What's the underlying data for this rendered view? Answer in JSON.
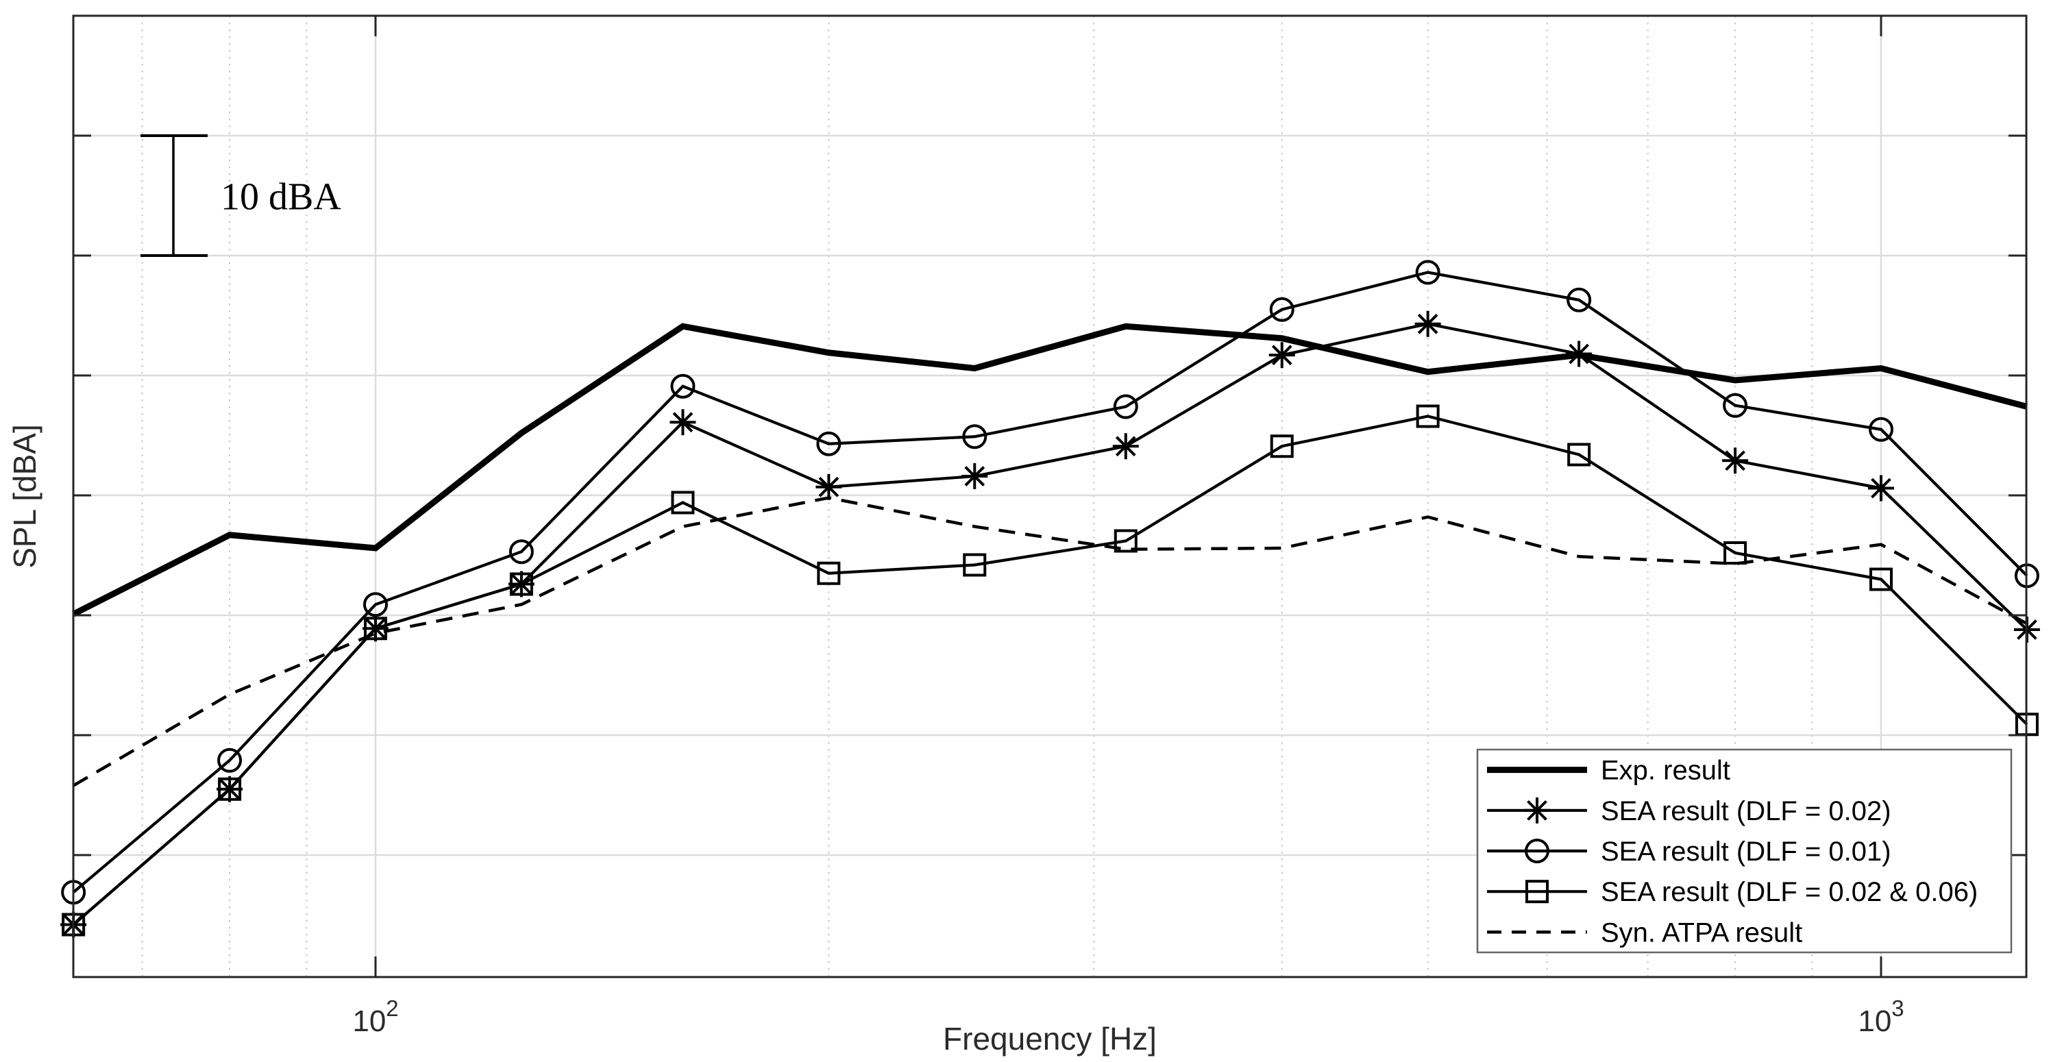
{
  "chart_data": {
    "type": "line",
    "title": "",
    "xlabel": "Frequency [Hz]",
    "ylabel": "SPL [dBA]",
    "x_scale": "log10",
    "x_range_hz": [
      63,
      1250
    ],
    "x_ticks": [
      {
        "value": 100,
        "label_base": "10",
        "label_exp": "2"
      },
      {
        "value": 1000,
        "label_base": "10",
        "label_exp": "3"
      }
    ],
    "x_gridlines_major_hz": [
      100,
      1000
    ],
    "x_gridlines_minor_hz": [
      70,
      80,
      90,
      200,
      300,
      400,
      500,
      600,
      700,
      800,
      900
    ],
    "y_axis": {
      "tick_labels_hidden": true,
      "gridline_interval_dba": 10,
      "relative_range_dba": [
        0,
        80
      ],
      "gridline_values": [
        10,
        20,
        30,
        40,
        50,
        60,
        70
      ]
    },
    "annotation": {
      "text": "10 dBA",
      "meaning": "vertical scale bar spanning one horizontal gridline interval (10 dBA)"
    },
    "grid": "on",
    "legend_position": "bottom-right",
    "frequencies_hz": [
      63,
      80,
      100,
      125,
      160,
      200,
      250,
      315,
      400,
      500,
      630,
      800,
      1000,
      1250
    ],
    "values_unit": "dBA relative (y-axis unlabeled; 0 = bottom of plot box)",
    "series": [
      {
        "name": "Exp. result",
        "marker": "none",
        "line": "solid-thick",
        "values": [
          30.1,
          36.7,
          35.6,
          45.2,
          54.1,
          51.9,
          50.6,
          54.1,
          53.1,
          50.3,
          51.7,
          49.6,
          50.6,
          47.4
        ]
      },
      {
        "name": "SEA result (DLF = 0.02)",
        "marker": "asterisk",
        "line": "solid",
        "values": [
          4.2,
          15.5,
          28.9,
          32.6,
          46.1,
          40.7,
          41.6,
          44.1,
          51.7,
          54.3,
          51.8,
          42.9,
          40.6,
          28.8
        ]
      },
      {
        "name": "SEA result (DLF = 0.01)",
        "marker": "circle",
        "line": "solid",
        "values": [
          6.9,
          17.9,
          30.9,
          35.3,
          49.1,
          44.3,
          44.9,
          47.4,
          55.5,
          58.6,
          56.3,
          47.5,
          45.5,
          33.3
        ]
      },
      {
        "name": "SEA result (DLF = 0.02 & 0.06)",
        "marker": "square",
        "line": "solid",
        "values": [
          4.2,
          15.5,
          28.9,
          32.6,
          39.4,
          33.5,
          34.2,
          36.2,
          44.1,
          46.6,
          43.4,
          35.2,
          33.0,
          20.9
        ]
      },
      {
        "name": "Syn. ATPA result",
        "marker": "none",
        "line": "dashed",
        "values": [
          15.8,
          23.4,
          28.5,
          30.9,
          37.4,
          39.8,
          37.4,
          35.5,
          35.6,
          38.2,
          34.9,
          34.3,
          35.9,
          29.3
        ]
      }
    ],
    "colors": {
      "series_line": "#000000",
      "spine": "#262626",
      "grid_major": "#dcdcdc",
      "grid_minor": "#c6c6c6",
      "legend_border": "#666666",
      "background": "#ffffff"
    }
  }
}
